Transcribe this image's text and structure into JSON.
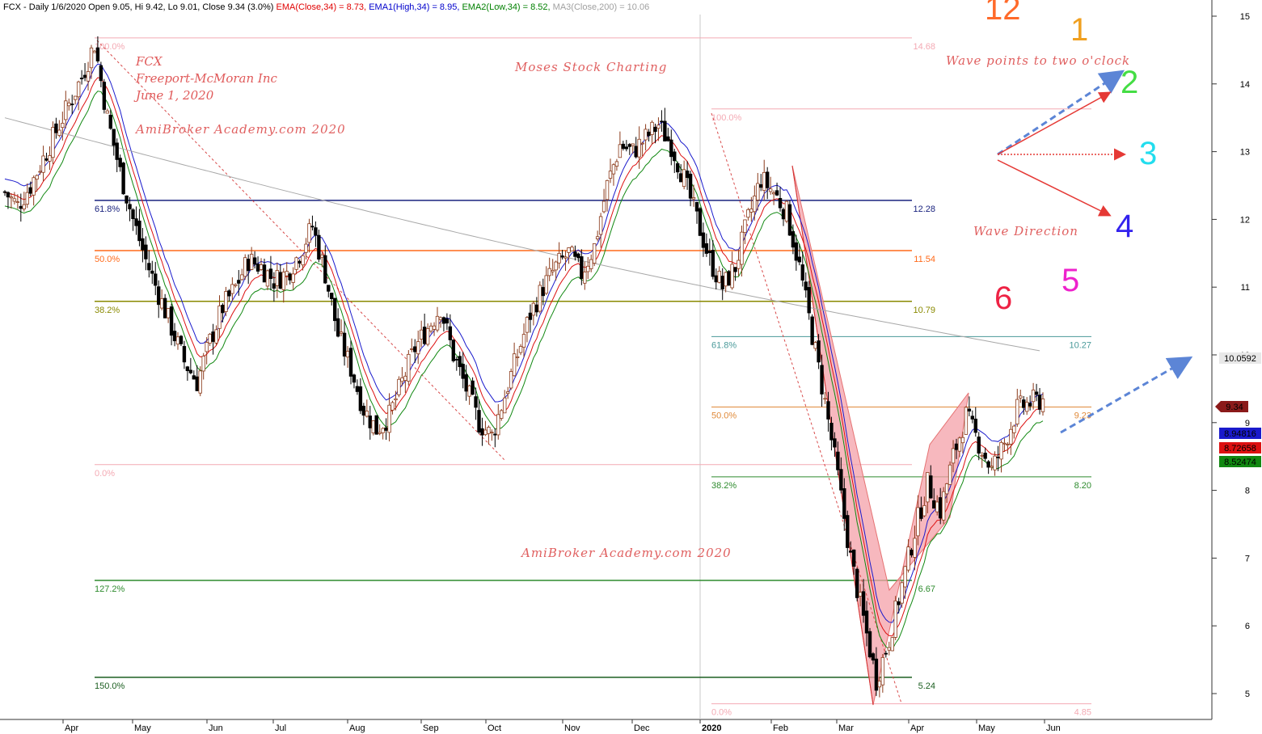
{
  "header": {
    "prefix": "FCX - Daily 1/6/2020 Open 9.05, Hi 9.42, Lo 9.01, Close 9.34 (3.0%)",
    "ema": "EMA(Close,34) = 8.73,",
    "ema1": "EMA1(High,34) = 8.95,",
    "ema2": "EMA2(Low,34) = 8.52,",
    "ma3": "MA3(Close,200) = 10.06",
    "colors": {
      "ema": "#e00000",
      "ema1": "#0000cc",
      "ema2": "#008000",
      "ma3": "#a0a0a0"
    }
  },
  "annotations": {
    "ticker": "FCX",
    "company": "Freeport-McMoran Inc",
    "date": "June 1, 2020",
    "credit_top": "AmiBroker Academy.com  2020",
    "charting": "Moses Stock Charting",
    "credit_bottom": "AmiBroker Academy.com  2020",
    "wave_points": "Wave points to two o'clock",
    "wave_direction": "Wave Direction"
  },
  "clock_face": [
    {
      "label": "12",
      "color": "#ff6a2a"
    },
    {
      "label": "1",
      "color": "#f0a020"
    },
    {
      "label": "2",
      "color": "#44dd44"
    },
    {
      "label": "3",
      "color": "#22ddee"
    },
    {
      "label": "4",
      "color": "#3322ee"
    },
    {
      "label": "5",
      "color": "#ee22cc"
    },
    {
      "label": "6",
      "color": "#ee2244"
    }
  ],
  "price_tags": [
    {
      "label": "10.0592",
      "value": 10.0592,
      "bg": "#e8e8e8",
      "fg": "#000000"
    },
    {
      "label": "9.34",
      "value": 9.34,
      "bg": "#8b1a1a",
      "fg": "#ffffff"
    },
    {
      "label": "8.94816",
      "value": 8.94816,
      "bg": "#1a1acc",
      "fg": "#ffffff"
    },
    {
      "label": "8.72658",
      "value": 8.72658,
      "bg": "#dd1111",
      "fg": "#ffffff"
    },
    {
      "label": "8.52474",
      "value": 8.52474,
      "bg": "#118811",
      "fg": "#ffffff"
    }
  ],
  "chart_data": {
    "type": "candlestick",
    "y_axis": {
      "min": 4.8,
      "max": 15.2,
      "ticks": [
        "15",
        "14",
        "13",
        "12",
        "11",
        "10",
        "9",
        "8",
        "7",
        "6",
        "5"
      ],
      "position": "right"
    },
    "x_axis": {
      "months": [
        "Apr",
        "May",
        "Jun",
        "Jul",
        "Aug",
        "Sep",
        "Oct",
        "Nov",
        "Dec",
        "2020",
        "Feb",
        "Mar",
        "Apr",
        "May",
        "Jun"
      ]
    },
    "series": [
      {
        "name": "EMA(Close,34)",
        "value": 8.73
      },
      {
        "name": "EMA1(High,34)",
        "value": 8.95
      },
      {
        "name": "EMA2(Low,34)",
        "value": 8.52
      },
      {
        "name": "MA3(Close,200)",
        "value": 10.06
      }
    ],
    "close_series": [
      12.4,
      12.2,
      12.5,
      12.9,
      13.3,
      13.7,
      14.1,
      14.6,
      13.5,
      12.7,
      12.0,
      11.4,
      10.9,
      10.4,
      9.9,
      9.6,
      10.2,
      10.7,
      11.0,
      11.4,
      11.3,
      11.1,
      11.2,
      11.5,
      11.9,
      11.2,
      10.3,
      9.8,
      9.2,
      8.9,
      9.1,
      9.6,
      10.1,
      10.4,
      10.7,
      10.0,
      9.5,
      9.0,
      8.8,
      9.4,
      10.0,
      10.6,
      11.0,
      11.3,
      11.5,
      11.2,
      11.6,
      12.5,
      13.1,
      13.0,
      13.2,
      13.4,
      13.1,
      12.6,
      12.0,
      11.4,
      11.0,
      11.3,
      12.0,
      12.6,
      12.4,
      12.1,
      11.3,
      10.3,
      9.3,
      8.2,
      7.0,
      6.1,
      5.2,
      5.8,
      6.6,
      7.4,
      8.1,
      7.7,
      8.5,
      9.1,
      8.7,
      8.3,
      8.7,
      9.2,
      9.3,
      9.34
    ],
    "fib_groups": [
      {
        "levels": [
          {
            "pct": "100.0%",
            "value": 14.68,
            "color": "#f4aab4"
          },
          {
            "pct": "61.8%",
            "value": 12.28,
            "color": "#1a237e"
          },
          {
            "pct": "50.0%",
            "value": 11.54,
            "color": "#ff6a1a"
          },
          {
            "pct": "38.2%",
            "value": 10.79,
            "color": "#8a8a00"
          },
          {
            "pct": "0.0%",
            "value": 8.38,
            "color": "#f4aab4"
          },
          {
            "pct": "127.2%",
            "value": 6.67,
            "color": "#2e8b2e"
          },
          {
            "pct": "150.0%",
            "value": 5.24,
            "color": "#1b5e20"
          }
        ]
      },
      {
        "levels": [
          {
            "pct": "100.0%",
            "value": 13.63,
            "color": "#f4aab4"
          },
          {
            "pct": "61.8%",
            "value": 10.27,
            "color": "#4a9a9a"
          },
          {
            "pct": "50.0%",
            "value": 9.23,
            "color": "#e08a3a"
          },
          {
            "pct": "38.2%",
            "value": 8.2,
            "color": "#2e8b2e"
          },
          {
            "pct": "0.0%",
            "value": 4.85,
            "color": "#f4aab4"
          }
        ]
      }
    ],
    "fib_value_labels": [
      "14.68",
      "12.28",
      "11.54",
      "10.79",
      "6.67",
      "5.24",
      "10.27",
      "9.23",
      "8.20",
      "4.85"
    ]
  }
}
